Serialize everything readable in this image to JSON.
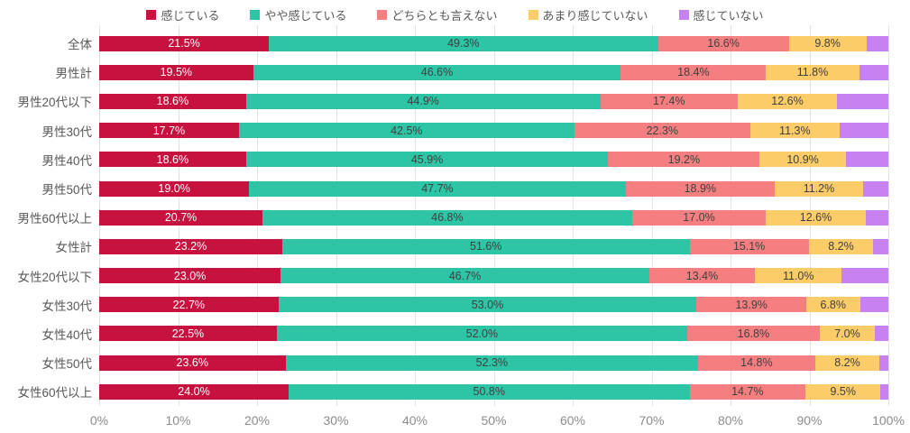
{
  "chart_data": {
    "type": "bar",
    "variant": "horizontal-stacked-100",
    "title": "",
    "xlabel": "",
    "ylabel": "",
    "xlim": [
      0,
      100
    ],
    "grid": "vertical-10pct",
    "legend_position": "top",
    "value_suffix": "%",
    "x_ticks": [
      "0%",
      "10%",
      "20%",
      "30%",
      "40%",
      "50%",
      "60%",
      "70%",
      "80%",
      "90%",
      "100%"
    ],
    "categories": [
      "全体",
      "男性計",
      "男性20代以下",
      "男性30代",
      "男性40代",
      "男性50代",
      "男性60代以上",
      "女性計",
      "女性20代以下",
      "女性30代",
      "女性40代",
      "女性50代",
      "女性60代以上"
    ],
    "series": [
      {
        "name": "感じている",
        "color": "#c71240",
        "label_color": "#ffffff",
        "show_labels": true,
        "values": [
          21.5,
          19.5,
          18.6,
          17.7,
          18.6,
          19.0,
          20.7,
          23.2,
          23.0,
          22.7,
          22.5,
          23.6,
          24.0
        ]
      },
      {
        "name": "やや感じている",
        "color": "#2ec4a6",
        "label_color": "#3f3f3f",
        "show_labels": true,
        "values": [
          49.3,
          46.6,
          44.9,
          42.5,
          45.9,
          47.7,
          46.8,
          51.6,
          46.7,
          53.0,
          52.0,
          52.3,
          50.8
        ]
      },
      {
        "name": "どちらとも言えない",
        "color": "#f57f80",
        "label_color": "#3f3f3f",
        "show_labels": true,
        "values": [
          16.6,
          18.4,
          17.4,
          22.3,
          19.2,
          18.9,
          17.0,
          15.1,
          13.4,
          13.9,
          16.8,
          14.8,
          14.7
        ]
      },
      {
        "name": "あまり感じていない",
        "color": "#fbcc68",
        "label_color": "#3f3f3f",
        "show_labels": true,
        "values": [
          9.8,
          11.8,
          12.6,
          11.3,
          10.9,
          11.2,
          12.6,
          8.2,
          11.0,
          6.8,
          7.0,
          8.2,
          9.5
        ]
      },
      {
        "name": "感じていない",
        "color": "#c781f0",
        "label_color": "#3f3f3f",
        "show_labels": false,
        "values": [
          2.8,
          3.7,
          6.5,
          6.2,
          5.4,
          3.2,
          2.9,
          1.9,
          5.9,
          3.6,
          1.7,
          1.1,
          1.0
        ]
      }
    ]
  },
  "style": {
    "gridline_color": "#e2e2e2",
    "tick_color": "#8c8c8c",
    "category_color": "#595959",
    "legend_text_color": "#595959",
    "background": "#ffffff"
  }
}
